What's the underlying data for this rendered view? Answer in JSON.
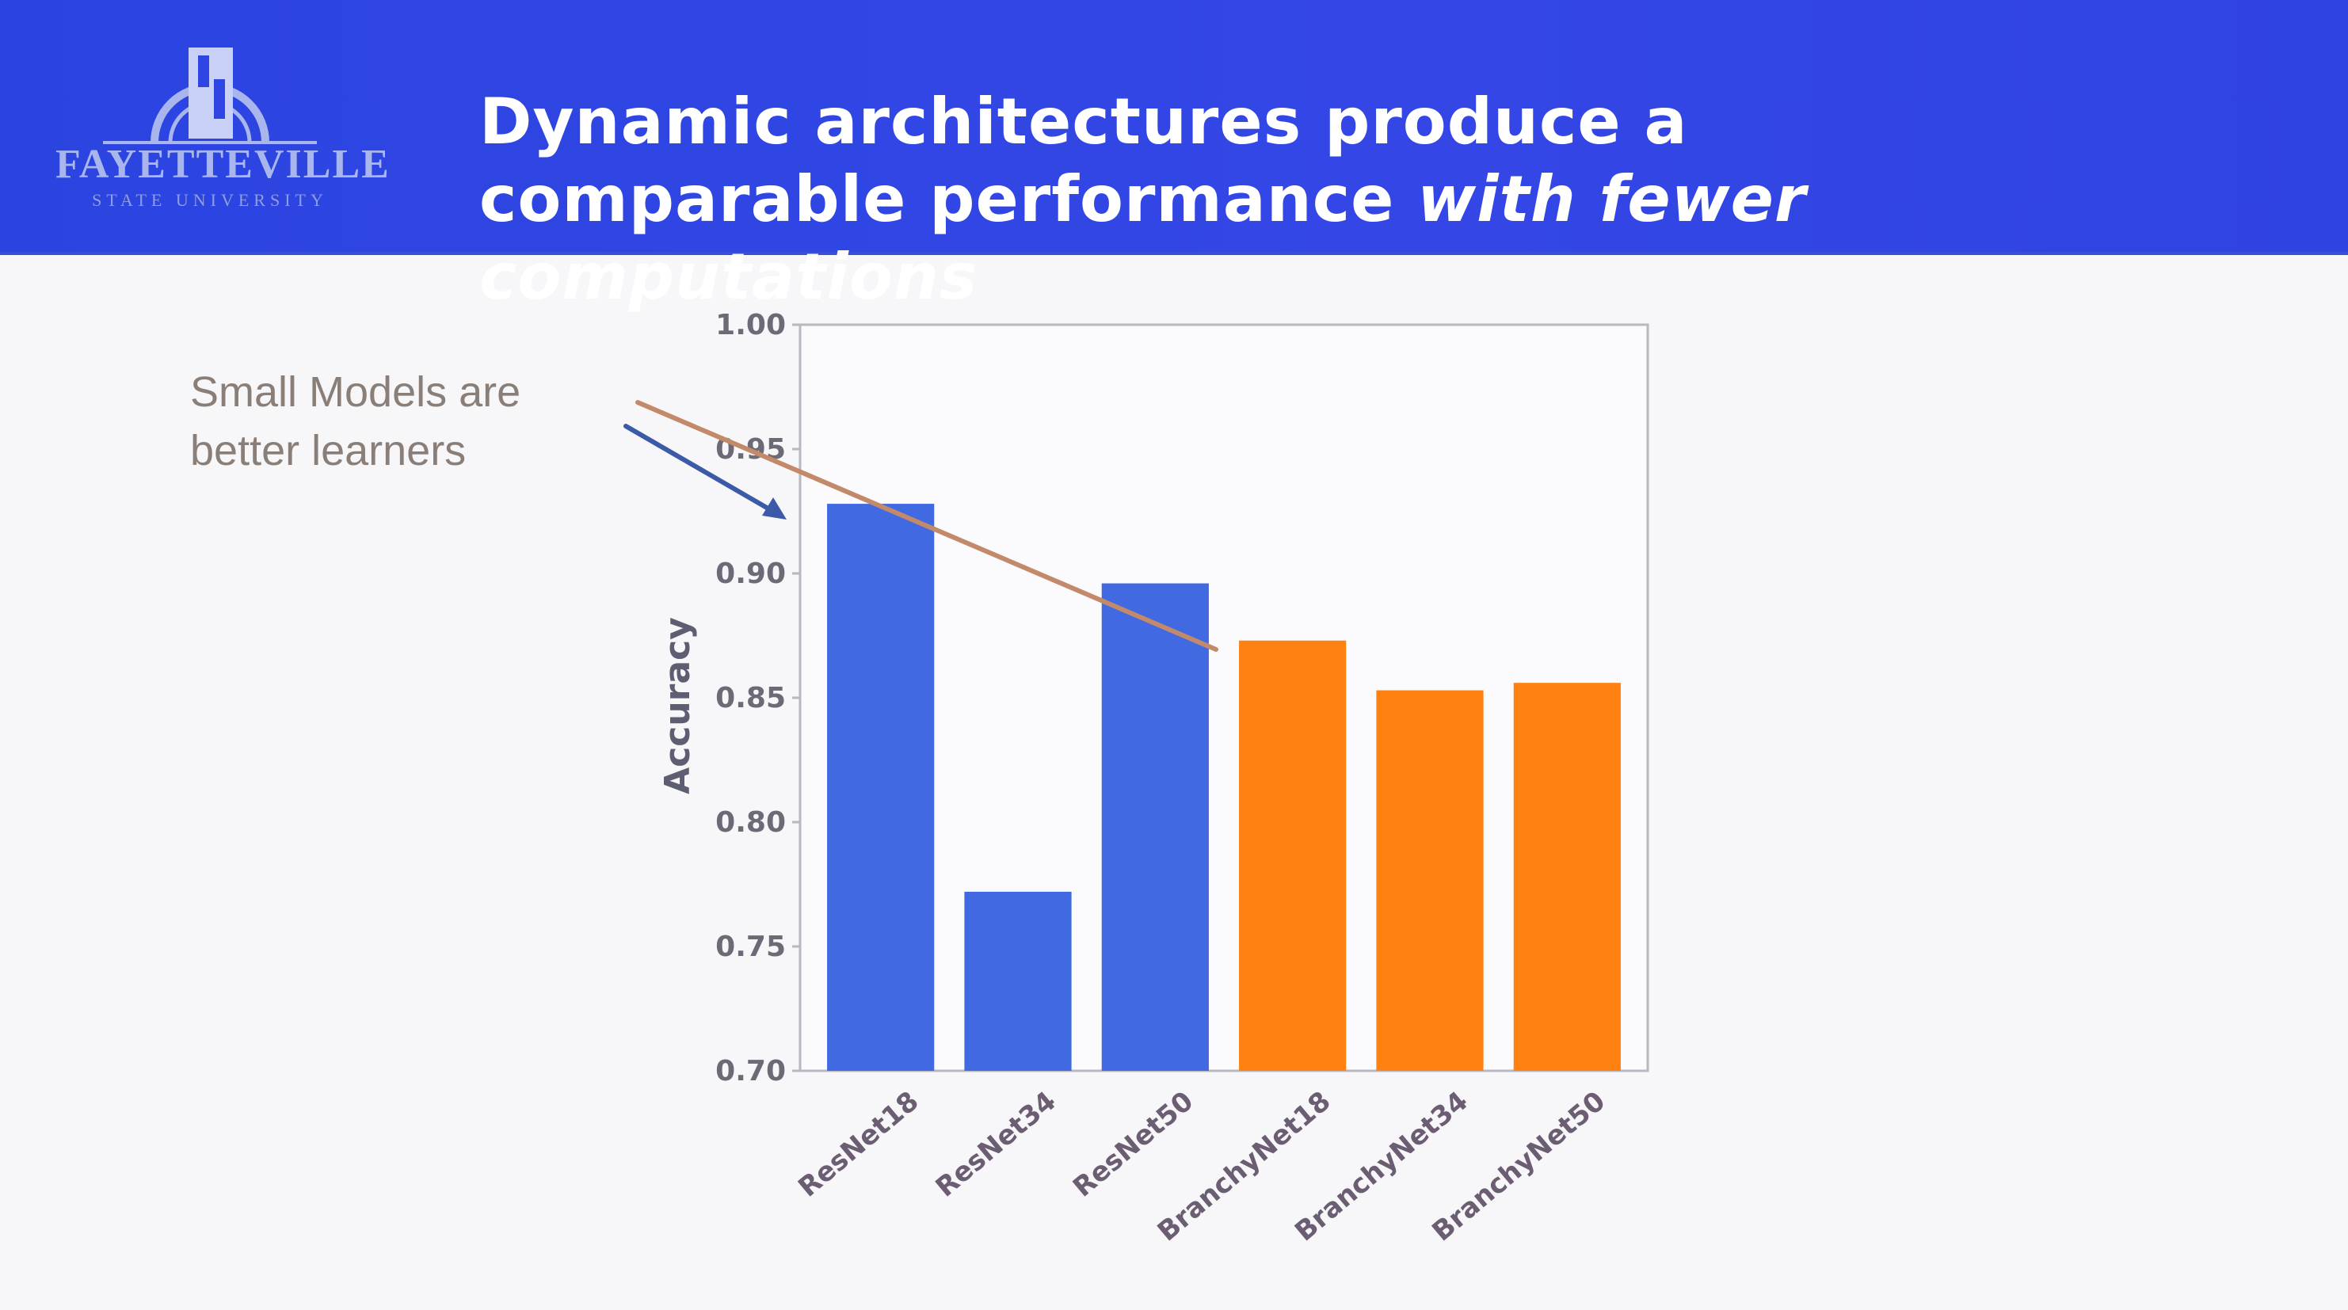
{
  "header": {
    "title_line1": "Dynamic architectures produce a",
    "title_line2_plain": "comparable performance ",
    "title_line2_italic": "with fewer computations",
    "logo_text": "FAYETTEVILLE",
    "logo_subtext": "STATE UNIVERSITY"
  },
  "annotation": {
    "line1": "Small Models are",
    "line2": "better learners"
  },
  "colors": {
    "header_bg": "#2f45e3",
    "resnet_bar": "#4169e1",
    "branchynet_bar": "#ff8112",
    "arrow_orange": "#c28a6a",
    "arrow_blue": "#3b5aa8"
  },
  "chart_data": {
    "type": "bar",
    "title": "",
    "xlabel": "",
    "ylabel": "Accuracy",
    "ylim": [
      0.7,
      1.0
    ],
    "yticks": [
      "0.70",
      "0.75",
      "0.80",
      "0.85",
      "0.90",
      "0.95",
      "1.00"
    ],
    "categories": [
      "ResNet18",
      "ResNet34",
      "ResNet50",
      "BranchyNet18",
      "BranchyNet34",
      "BranchyNet50"
    ],
    "values": [
      0.928,
      0.772,
      0.896,
      0.873,
      0.853,
      0.856
    ],
    "bar_colors": [
      "#4169e1",
      "#4169e1",
      "#4169e1",
      "#ff8112",
      "#ff8112",
      "#ff8112"
    ],
    "grid": false
  }
}
